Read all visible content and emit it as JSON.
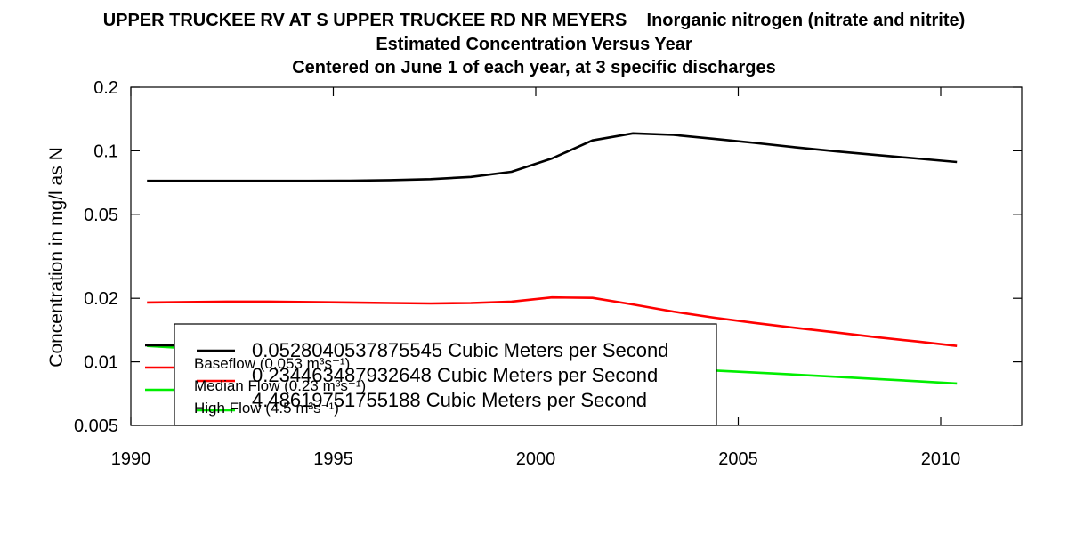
{
  "title": {
    "line1": "UPPER TRUCKEE RV AT S UPPER TRUCKEE RD NR MEYERS    Inorganic nitrogen (nitrate and nitrite)",
    "line2": "Estimated Concentration Versus Year",
    "line3": "Centered on June 1 of each year, at 3 specific discharges"
  },
  "chart_data": {
    "type": "line",
    "ylabel": "Concentration in mg/l as N",
    "xlabel": "",
    "xlim": [
      1990,
      2012
    ],
    "ylim": [
      0.005,
      0.2
    ],
    "y_scale": "log",
    "x_ticks": [
      1990,
      1995,
      2000,
      2005,
      2010
    ],
    "y_ticks": [
      {
        "value": 0.005,
        "label": "0.005"
      },
      {
        "value": 0.01,
        "label": "0.01"
      },
      {
        "value": 0.02,
        "label": "0.02"
      },
      {
        "value": 0.05,
        "label": "0.05"
      },
      {
        "value": 0.1,
        "label": "0.1"
      },
      {
        "value": 0.2,
        "label": "0.2"
      }
    ],
    "x": [
      1990.4,
      1991.4,
      1992.4,
      1993.4,
      1994.4,
      1995.4,
      1996.4,
      1997.4,
      1998.4,
      1999.4,
      2000.4,
      2001.4,
      2002.4,
      2003.4,
      2004.4,
      2005.4,
      2006.4,
      2007.4,
      2008.4,
      2009.4,
      2010.4
    ],
    "series": [
      {
        "name": "Baseflow (0.053 m³s⁻¹)",
        "color": "#000000",
        "values": [
          0.072,
          0.072,
          0.072,
          0.072,
          0.072,
          0.0722,
          0.0726,
          0.0734,
          0.0752,
          0.0795,
          0.092,
          0.112,
          0.121,
          0.119,
          0.114,
          0.109,
          0.104,
          0.0995,
          0.0955,
          0.092,
          0.0885
        ]
      },
      {
        "name": "Median Flow (0.23 m³s⁻¹)",
        "color": "#ff0000",
        "values": [
          0.0191,
          0.0192,
          0.0193,
          0.0193,
          0.0192,
          0.0191,
          0.019,
          0.0189,
          0.019,
          0.0193,
          0.0202,
          0.0201,
          0.0187,
          0.0173,
          0.0162,
          0.0153,
          0.0145,
          0.0138,
          0.0131,
          0.0125,
          0.0119
        ]
      },
      {
        "name": "High Flow (4.5 m³s⁻¹)",
        "color": "#00ee00",
        "values": [
          0.0119,
          0.0116,
          0.0113,
          0.011,
          0.0107,
          0.0104,
          0.0102,
          0.0099,
          0.0097,
          0.0096,
          0.0095,
          0.0094,
          0.0093,
          0.0092,
          0.0091,
          0.0089,
          0.0087,
          0.0085,
          0.0083,
          0.0081,
          0.0079
        ]
      }
    ],
    "legend": {
      "placement": "bottom-left",
      "entries": [
        "Baseflow (0.053 m³s⁻¹)",
        "Median Flow (0.23 m³s⁻¹)",
        "High Flow (4.5 m³s⁻¹)"
      ],
      "overlay_entries": [
        "0.0528040537875545 Cubic Meters per Second",
        "0.234463487932648 Cubic Meters per Second",
        "4.48619751755188 Cubic Meters per Second"
      ]
    }
  }
}
